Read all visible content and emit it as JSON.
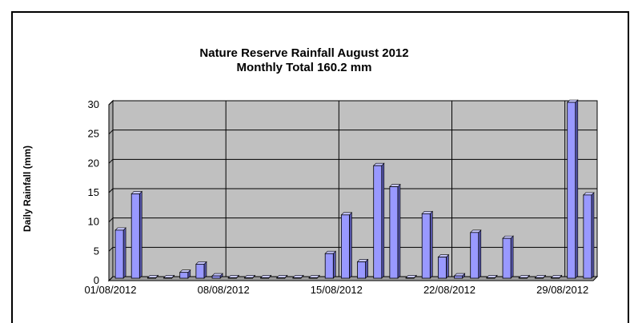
{
  "chart_data": {
    "type": "bar",
    "title": "Nature Reserve Rainfall August 2012",
    "subtitle": "Monthly Total 160.2 mm",
    "xlabel": "",
    "ylabel": "Daily Rainfall (mm)",
    "ylim": [
      0,
      30
    ],
    "yticks": [
      0,
      5,
      10,
      15,
      20,
      25,
      30
    ],
    "xtick_labels": [
      "01/08/2012",
      "08/08/2012",
      "15/08/2012",
      "22/08/2012",
      "29/08/2012"
    ],
    "categories": [
      "01/08/2012",
      "02/08/2012",
      "03/08/2012",
      "04/08/2012",
      "05/08/2012",
      "06/08/2012",
      "07/08/2012",
      "08/08/2012",
      "09/08/2012",
      "10/08/2012",
      "11/08/2012",
      "12/08/2012",
      "13/08/2012",
      "14/08/2012",
      "15/08/2012",
      "16/08/2012",
      "17/08/2012",
      "18/08/2012",
      "19/08/2012",
      "20/08/2012",
      "21/08/2012",
      "22/08/2012",
      "23/08/2012",
      "24/08/2012",
      "25/08/2012",
      "26/08/2012",
      "27/08/2012",
      "28/08/2012",
      "29/08/2012",
      "30/08/2012"
    ],
    "values": [
      8.2,
      14.4,
      0,
      0,
      1.0,
      2.4,
      0.4,
      0,
      0,
      0,
      0,
      0,
      0,
      4.2,
      10.8,
      2.8,
      19.2,
      15.6,
      0,
      11.0,
      3.6,
      0.4,
      7.8,
      0,
      6.8,
      0,
      0,
      0,
      30.0,
      14.2
    ],
    "grid": true,
    "colors": {
      "bar": "#9999ff",
      "plot_bg": "#c0c0c0",
      "bar_edge": "#000000"
    }
  }
}
